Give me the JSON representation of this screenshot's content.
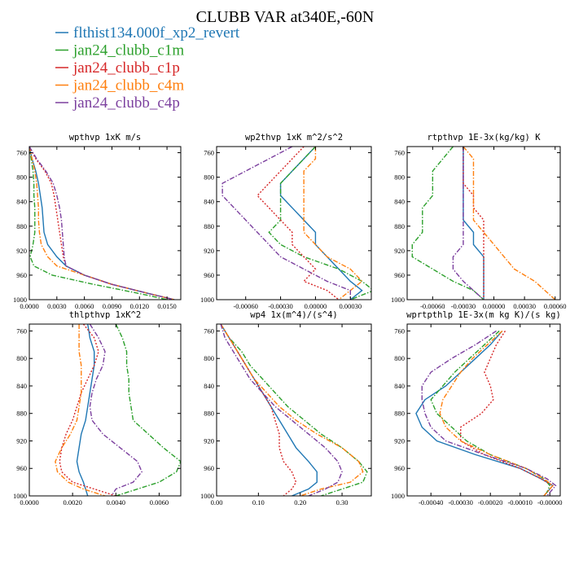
{
  "figure_title": "CLUBB VAR at340E,-60N",
  "legend": [
    {
      "label": "flthist134.000f_xp2_revert",
      "color": "#1f77b4",
      "dash": "solid"
    },
    {
      "label": "jan24_clubb_c1m",
      "color": "#2ca02c",
      "dash": "dashdot"
    },
    {
      "label": "jan24_clubb_c1p",
      "color": "#d62728",
      "dash": "dot"
    },
    {
      "label": "jan24_clubb_c4m",
      "color": "#ff7f0e",
      "dash": "dashdot"
    },
    {
      "label": "jan24_clubb_c4p",
      "color": "#7b3f9e",
      "dash": "dashdot"
    }
  ],
  "chart_data": [
    {
      "type": "line",
      "title": "wpthvp  1xK m/s",
      "xlim": [
        0,
        0.0165
      ],
      "ylim": [
        750,
        1000
      ],
      "y_reversed": true,
      "yticks": [
        760,
        800,
        840,
        880,
        920,
        960,
        1000
      ],
      "xticks": [
        0.0,
        0.003,
        0.006,
        0.009,
        0.012,
        0.015
      ],
      "xtick_labels": [
        "0.0000",
        "0.0030",
        "0.0060",
        "0.0090",
        "0.0120",
        "0.0150"
      ],
      "y": [
        750,
        770,
        790,
        810,
        830,
        850,
        870,
        890,
        910,
        930,
        945,
        960,
        975,
        990,
        1000
      ],
      "series": [
        {
          "x": [
            0.0,
            0.0003,
            0.0007,
            0.001,
            0.0012,
            0.0014,
            0.0015,
            0.0016,
            0.002,
            0.003,
            0.004,
            0.006,
            0.009,
            0.013,
            0.0158
          ]
        },
        {
          "x": [
            0.0,
            0.0002,
            0.0004,
            0.0005,
            0.0005,
            0.0006,
            0.0006,
            0.0006,
            0.0004,
            0.0001,
            0.0005,
            0.0025,
            0.007,
            0.012,
            0.015
          ]
        },
        {
          "x": [
            0.0,
            0.0007,
            0.0017,
            0.0024,
            0.0027,
            0.0029,
            0.0031,
            0.0033,
            0.0035,
            0.0037,
            0.004,
            0.006,
            0.009,
            0.013,
            0.0158
          ]
        },
        {
          "x": [
            0.0,
            0.0003,
            0.0006,
            0.0008,
            0.0009,
            0.001,
            0.001,
            0.0011,
            0.0013,
            0.002,
            0.003,
            0.006,
            0.009,
            0.013,
            0.0158
          ]
        },
        {
          "x": [
            0.0,
            0.0008,
            0.0018,
            0.0026,
            0.003,
            0.0033,
            0.0035,
            0.0036,
            0.0037,
            0.0038,
            0.004,
            0.006,
            0.009,
            0.013,
            0.0158
          ]
        }
      ]
    },
    {
      "type": "line",
      "title": "wp2thvp  1xK m^2/s^2",
      "xlim": [
        -0.00085,
        0.00048
      ],
      "ylim": [
        750,
        1000
      ],
      "y_reversed": true,
      "yticks": [
        760,
        800,
        840,
        880,
        920,
        960,
        1000
      ],
      "xticks": [
        -0.0006,
        -0.0003,
        0.0,
        0.0003
      ],
      "xtick_labels": [
        "-0.00060",
        "-0.00030",
        "0.00000",
        "0.00030"
      ],
      "y": [
        750,
        770,
        790,
        810,
        830,
        850,
        870,
        890,
        910,
        930,
        950,
        970,
        985,
        1000
      ],
      "series": [
        {
          "x": [
            0.0,
            -0.0001,
            -0.0002,
            -0.0003,
            -0.0003,
            -0.0002,
            -0.0001,
            0.0,
            0.0,
            0.0001,
            0.0002,
            0.0003,
            0.0004,
            0.0003
          ]
        },
        {
          "x": [
            0.0,
            -0.0001,
            -0.0002,
            -0.0003,
            -0.0003,
            -0.0003,
            -0.0003,
            -0.0004,
            -0.0003,
            -0.0001,
            0.0002,
            0.0004,
            0.0005,
            0.0003
          ]
        },
        {
          "x": [
            -0.0001,
            -0.0002,
            -0.0003,
            -0.0004,
            -0.0005,
            -0.0004,
            -0.0003,
            -0.0002,
            -0.0002,
            -0.0001,
            0.0,
            -0.0001,
            0.0001,
            0.0002
          ]
        },
        {
          "x": [
            0.0,
            0.0,
            -0.0001,
            -0.0001,
            -0.0001,
            -0.0001,
            -0.0001,
            -0.0001,
            0.0,
            0.0001,
            0.0003,
            0.0004,
            0.0003,
            0.0002
          ]
        },
        {
          "x": [
            -0.0002,
            -0.0004,
            -0.0006,
            -0.0008,
            -0.0008,
            -0.0007,
            -0.0006,
            -0.0005,
            -0.0004,
            -0.0003,
            -0.0001,
            0.0001,
            0.0003,
            0.0003
          ]
        }
      ]
    },
    {
      "type": "line",
      "title": "rtpthvp  1E-3x(kg/kg) K",
      "xlim": [
        -0.00085,
        0.00065
      ],
      "ylim": [
        750,
        1000
      ],
      "y_reversed": true,
      "yticks": [
        760,
        800,
        840,
        880,
        920,
        960,
        1000
      ],
      "xticks": [
        -0.0006,
        -0.0003,
        0.0,
        0.0003,
        0.0006
      ],
      "xtick_labels": [
        "-0.00060",
        "-0.00030",
        "0.00000",
        "0.00030",
        "0.00060"
      ],
      "y": [
        750,
        770,
        790,
        810,
        830,
        850,
        870,
        890,
        910,
        930,
        950,
        970,
        985,
        1000
      ],
      "series": [
        {
          "x": [
            -0.0003,
            -0.0003,
            -0.0003,
            -0.0003,
            -0.0003,
            -0.0003,
            -0.0003,
            -0.0002,
            -0.0002,
            -0.0001,
            -0.0001,
            -0.0001,
            -0.0001,
            -0.0001
          ]
        },
        {
          "x": [
            -0.0004,
            -0.0005,
            -0.0006,
            -0.0006,
            -0.0006,
            -0.0007,
            -0.0007,
            -0.0007,
            -0.0008,
            -0.0008,
            -0.0006,
            -0.0004,
            -0.0002,
            -0.0001
          ]
        },
        {
          "x": [
            -0.0003,
            -0.0003,
            -0.0003,
            -0.0003,
            -0.0002,
            -0.0002,
            -0.0001,
            -0.0001,
            -0.0001,
            -0.0001,
            -0.0001,
            -0.0001,
            -0.0001,
            -0.0001
          ]
        },
        {
          "x": [
            -0.0003,
            -0.0002,
            -0.0002,
            -0.0002,
            -0.0002,
            -0.0002,
            -0.0002,
            -0.0001,
            0.0,
            0.0001,
            0.0002,
            0.0004,
            0.0005,
            0.0006
          ]
        },
        {
          "x": [
            -0.0003,
            -0.0003,
            -0.0003,
            -0.0003,
            -0.0003,
            -0.0003,
            -0.0003,
            -0.0003,
            -0.0003,
            -0.0004,
            -0.0004,
            -0.0003,
            -0.0002,
            -0.0001
          ]
        }
      ]
    },
    {
      "type": "line",
      "title": "thlpthvp  1xK^2",
      "xlim": [
        0,
        0.007
      ],
      "ylim": [
        750,
        1000
      ],
      "y_reversed": true,
      "yticks": [
        760,
        800,
        840,
        880,
        920,
        960,
        1000
      ],
      "xticks": [
        0.0,
        0.002,
        0.004,
        0.006
      ],
      "xtick_labels": [
        "0.0000",
        "0.0020",
        "0.0040",
        "0.0060"
      ],
      "y": [
        750,
        770,
        790,
        810,
        830,
        850,
        870,
        890,
        910,
        930,
        950,
        965,
        980,
        990,
        1000
      ],
      "series": [
        {
          "x": [
            0.0027,
            0.0028,
            0.003,
            0.003,
            0.0029,
            0.0028,
            0.0027,
            0.0026,
            0.0024,
            0.0023,
            0.0022,
            0.0023,
            0.0025,
            0.0026,
            0.0027
          ]
        },
        {
          "x": [
            0.004,
            0.0043,
            0.0045,
            0.0045,
            0.0046,
            0.0046,
            0.0047,
            0.0048,
            0.0055,
            0.0062,
            0.007,
            0.0068,
            0.006,
            0.005,
            0.004
          ]
        },
        {
          "x": [
            0.0025,
            0.003,
            0.0032,
            0.003,
            0.0027,
            0.0024,
            0.0022,
            0.002,
            0.0017,
            0.0015,
            0.0014,
            0.0015,
            0.002,
            0.003,
            0.004
          ]
        },
        {
          "x": [
            0.0023,
            0.0023,
            0.0023,
            0.0024,
            0.0024,
            0.0024,
            0.0023,
            0.0022,
            0.0019,
            0.0015,
            0.0012,
            0.0013,
            0.0018,
            0.0025,
            0.0035
          ]
        },
        {
          "x": [
            0.0028,
            0.0032,
            0.0035,
            0.0034,
            0.0031,
            0.0029,
            0.0028,
            0.0029,
            0.0034,
            0.0042,
            0.005,
            0.0052,
            0.0048,
            0.004,
            0.0038
          ]
        }
      ]
    },
    {
      "type": "line",
      "title": "wp4  1x(m^4)/(s^4)",
      "xlim": [
        0,
        0.37
      ],
      "ylim": [
        750,
        1000
      ],
      "y_reversed": true,
      "yticks": [
        760,
        800,
        840,
        880,
        920,
        960,
        1000
      ],
      "xticks": [
        0.0,
        0.1,
        0.2,
        0.3
      ],
      "xtick_labels": [
        "0.00",
        "0.10",
        "0.20",
        "0.30"
      ],
      "y": [
        750,
        770,
        790,
        810,
        830,
        850,
        870,
        890,
        910,
        930,
        950,
        965,
        980,
        990,
        1000
      ],
      "series": [
        {
          "x": [
            0.01,
            0.03,
            0.05,
            0.07,
            0.09,
            0.11,
            0.13,
            0.15,
            0.17,
            0.19,
            0.22,
            0.24,
            0.24,
            0.22,
            0.18
          ]
        },
        {
          "x": [
            0.01,
            0.03,
            0.06,
            0.08,
            0.11,
            0.14,
            0.17,
            0.21,
            0.25,
            0.3,
            0.34,
            0.36,
            0.35,
            0.3,
            0.25
          ]
        },
        {
          "x": [
            0.01,
            0.03,
            0.05,
            0.07,
            0.09,
            0.11,
            0.13,
            0.14,
            0.15,
            0.15,
            0.16,
            0.18,
            0.19,
            0.18,
            0.16
          ]
        },
        {
          "x": [
            0.01,
            0.03,
            0.05,
            0.07,
            0.09,
            0.12,
            0.15,
            0.19,
            0.24,
            0.3,
            0.34,
            0.35,
            0.32,
            0.25,
            0.2
          ]
        },
        {
          "x": [
            0.01,
            0.02,
            0.04,
            0.06,
            0.08,
            0.11,
            0.14,
            0.18,
            0.22,
            0.26,
            0.29,
            0.3,
            0.29,
            0.26,
            0.22
          ]
        }
      ]
    },
    {
      "type": "line",
      "title": "wprtpthlp  1E-3x(m kg K)/(s kg)",
      "xlim": [
        -0.00048,
        3.5e-05
      ],
      "ylim": [
        750,
        1000
      ],
      "y_reversed": true,
      "yticks": [
        760,
        800,
        840,
        880,
        920,
        960,
        1000
      ],
      "xticks": [
        -0.0004,
        -0.0003,
        -0.0002,
        -0.0001,
        0.0
      ],
      "xtick_labels": [
        "-0.00040",
        "-0.00030",
        "-0.00020",
        "-0.00010",
        "-0.00000"
      ],
      "y": [
        760,
        780,
        800,
        820,
        840,
        860,
        880,
        900,
        920,
        940,
        960,
        975,
        985,
        995,
        1000
      ],
      "series": [
        {
          "x": [
            -0.00016,
            -0.0002,
            -0.00025,
            -0.0003,
            -0.00035,
            -0.00042,
            -0.00045,
            -0.00043,
            -0.00038,
            -0.00025,
            -0.0001,
            -3e-05,
            1e-05,
            -1e-05,
            -2e-05
          ]
        },
        {
          "x": [
            -0.00017,
            -0.00022,
            -0.00027,
            -0.00032,
            -0.00036,
            -0.0004,
            -0.00038,
            -0.00033,
            -0.00028,
            -0.0002,
            -8e-05,
            -2e-05,
            0.0,
            -1e-05,
            -2e-05
          ]
        },
        {
          "x": [
            -0.00015,
            -0.00018,
            -0.0002,
            -0.00022,
            -0.0002,
            -0.00019,
            -0.00023,
            -0.0003,
            -0.0003,
            -0.00022,
            -0.0001,
            -3e-05,
            1e-05,
            -1e-05,
            -2e-05
          ]
        },
        {
          "x": [
            -0.00016,
            -0.00021,
            -0.00026,
            -0.0003,
            -0.00033,
            -0.00036,
            -0.00037,
            -0.00035,
            -0.0003,
            -0.0002,
            -8e-05,
            -2e-05,
            1e-05,
            -1e-05,
            -2e-05
          ]
        },
        {
          "x": [
            -0.00018,
            -0.00025,
            -0.00033,
            -0.0004,
            -0.00043,
            -0.00043,
            -0.00042,
            -0.0004,
            -0.00035,
            -0.00022,
            -8e-05,
            -1e-05,
            2e-05,
            0.0,
            -1e-05
          ]
        }
      ]
    }
  ]
}
